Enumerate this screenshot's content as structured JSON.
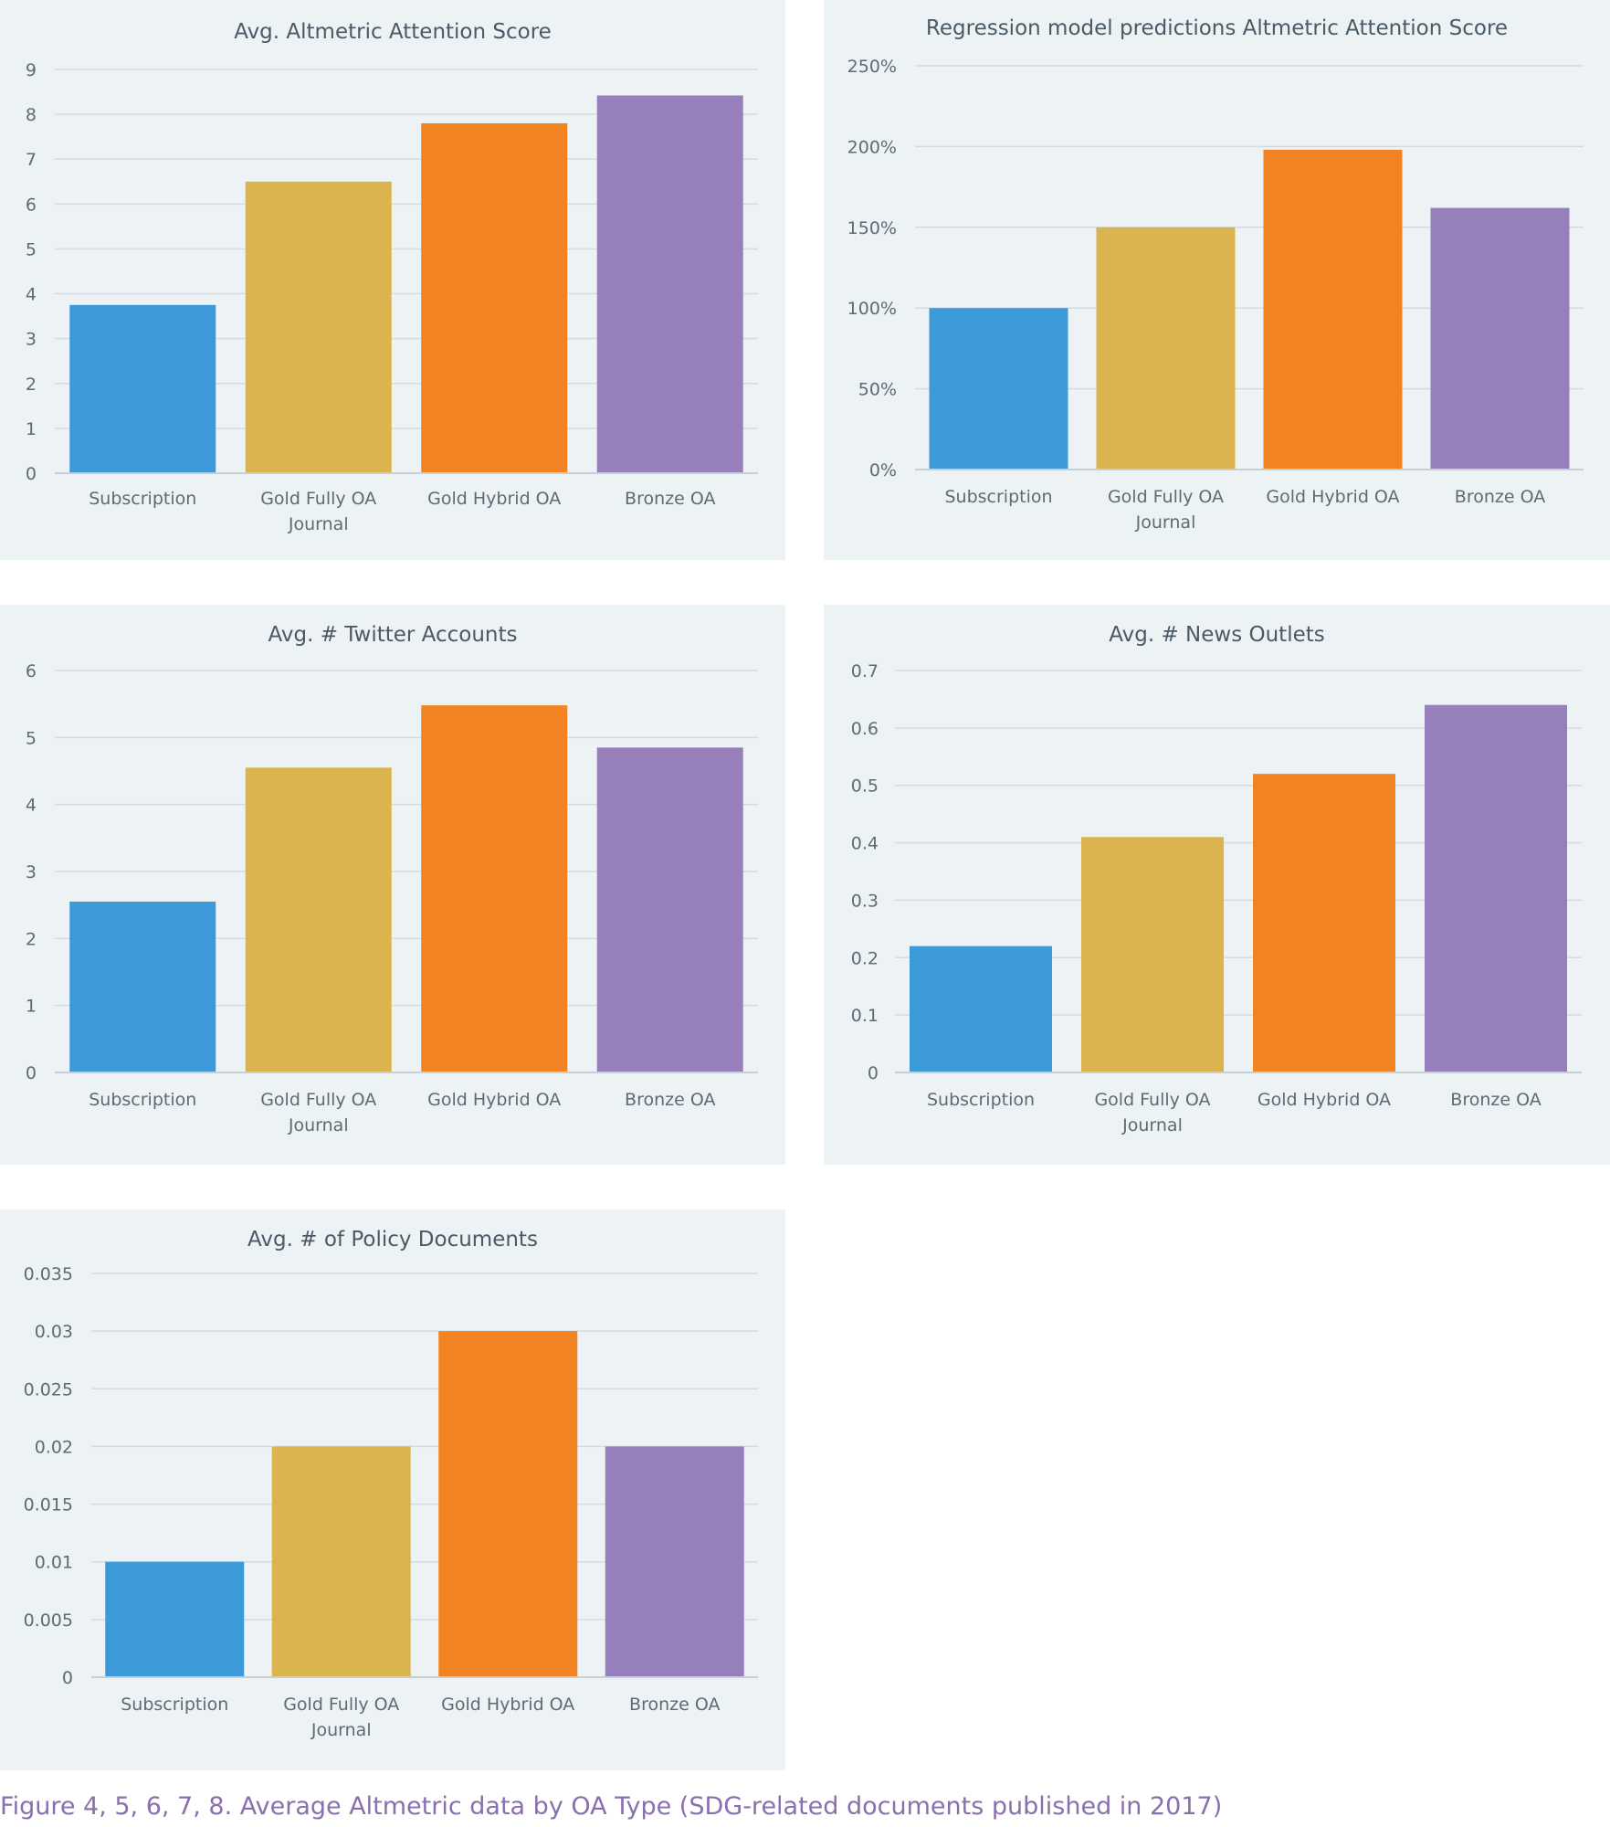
{
  "caption": "Figure 4, 5, 6, 7, 8. Average Altmetric data by OA Type (SDG-related documents published in 2017)",
  "colors": {
    "panel_background": "#edf2f5",
    "gridline": "#d4dbe0",
    "axis_text": "#5e6b75",
    "caption": "#8a6fae",
    "subscription": "#3d9ad8",
    "gold_fully_oa": "#dbb44f",
    "gold_hybrid_oa": "#f28323",
    "bronze_oa": "#967fbb"
  },
  "chart_data": [
    {
      "type": "bar",
      "title": "Avg. Altmetric Attention Score",
      "categories": [
        [
          "Subscription"
        ],
        [
          "Gold Fully OA",
          "Journal"
        ],
        [
          "Gold Hybrid OA"
        ],
        [
          "Bronze OA"
        ]
      ],
      "values": [
        3.75,
        6.5,
        7.8,
        8.42
      ],
      "ylim": [
        0,
        9
      ],
      "yticks": [
        0,
        1,
        2,
        3,
        4,
        5,
        6,
        7,
        8,
        9
      ],
      "ytick_labels": [
        "0",
        "1",
        "2",
        "3",
        "4",
        "5",
        "6",
        "7",
        "8",
        "9"
      ],
      "grid": true
    },
    {
      "type": "bar",
      "title": "Regression  model predictions Altmetric Attention Score",
      "categories": [
        [
          "Subscription"
        ],
        [
          "Gold Fully OA",
          "Journal"
        ],
        [
          "Gold Hybrid OA"
        ],
        [
          "Bronze OA"
        ]
      ],
      "values": [
        100,
        150,
        198,
        162
      ],
      "ylim": [
        0,
        250
      ],
      "yticks": [
        0,
        50,
        100,
        150,
        200,
        250
      ],
      "ytick_labels": [
        "0%",
        "50%",
        "100%",
        "150%",
        "200%",
        "250%"
      ],
      "grid": true
    },
    {
      "type": "bar",
      "title": "Avg. # Twitter Accounts",
      "categories": [
        [
          "Subscription"
        ],
        [
          "Gold Fully OA",
          "Journal"
        ],
        [
          "Gold Hybrid OA"
        ],
        [
          "Bronze OA"
        ]
      ],
      "values": [
        2.55,
        4.55,
        5.48,
        4.85
      ],
      "ylim": [
        0,
        6
      ],
      "yticks": [
        0,
        1,
        2,
        3,
        4,
        5,
        6
      ],
      "ytick_labels": [
        "0",
        "1",
        "2",
        "3",
        "4",
        "5",
        "6"
      ],
      "grid": true
    },
    {
      "type": "bar",
      "title": "Avg. # News Outlets",
      "categories": [
        [
          "Subscription"
        ],
        [
          "Gold Fully OA",
          "Journal"
        ],
        [
          "Gold Hybrid OA"
        ],
        [
          "Bronze OA"
        ]
      ],
      "values": [
        0.22,
        0.41,
        0.52,
        0.64
      ],
      "ylim": [
        0,
        0.7
      ],
      "yticks": [
        0,
        0.1,
        0.2,
        0.3,
        0.4,
        0.5,
        0.6,
        0.7
      ],
      "ytick_labels": [
        "0",
        "0.1",
        "0.2",
        "0.3",
        "0.4",
        "0.5",
        "0.6",
        "0.7"
      ],
      "grid": true
    },
    {
      "type": "bar",
      "title": "Avg. # of Policy Documents",
      "categories": [
        [
          "Subscription"
        ],
        [
          "Gold Fully OA",
          "Journal"
        ],
        [
          "Gold Hybrid OA"
        ],
        [
          "Bronze OA"
        ]
      ],
      "values": [
        0.01,
        0.02,
        0.03,
        0.02
      ],
      "ylim": [
        0,
        0.035
      ],
      "yticks": [
        0,
        0.005,
        0.01,
        0.015,
        0.02,
        0.025,
        0.03,
        0.035
      ],
      "ytick_labels": [
        "0",
        "0.005",
        "0.01",
        "0.015",
        "0.02",
        "0.025",
        "0.03",
        "0.035"
      ],
      "grid": true
    }
  ]
}
